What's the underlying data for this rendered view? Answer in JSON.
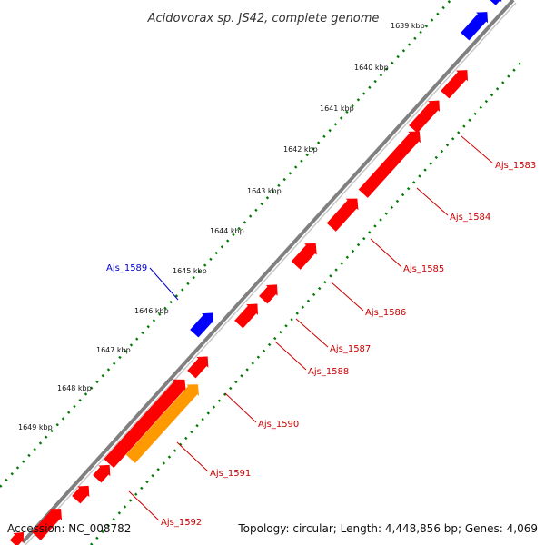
{
  "title": "Acidovorax sp. JS42, complete genome",
  "footer": {
    "accession": "Accession: NC_008782",
    "summary": "Topology: circular; Length: 4,448,856 bp; Genes: 4,069"
  },
  "colors": {
    "backbone": "#808080",
    "forward": "#0000ff",
    "reverse": "#ff0000",
    "highlight": "#ff9900",
    "ticks": "#007a00",
    "label_forward": "#0000cc",
    "label_reverse": "#cc0000"
  },
  "ticks": [
    "1639 kbp",
    "1640 kbp",
    "1641 kbp",
    "1642 kbp",
    "1643 kbp",
    "1644 kbp",
    "1645 kbp",
    "1646 kbp",
    "1647 kbp",
    "1648 kbp",
    "1649 kbp"
  ],
  "genes": [
    {
      "label": "Ajs_1583",
      "strand": "reverse"
    },
    {
      "label": "Ajs_1584",
      "strand": "reverse"
    },
    {
      "label": "Ajs_1585",
      "strand": "reverse"
    },
    {
      "label": "Ajs_1586",
      "strand": "reverse"
    },
    {
      "label": "Ajs_1587",
      "strand": "reverse"
    },
    {
      "label": "Ajs_1588",
      "strand": "reverse"
    },
    {
      "label": "Ajs_1589",
      "strand": "forward"
    },
    {
      "label": "Ajs_1590",
      "strand": "reverse"
    },
    {
      "label": "Ajs_1591",
      "strand": "highlight"
    },
    {
      "label": "Ajs_1592",
      "strand": "reverse"
    }
  ]
}
